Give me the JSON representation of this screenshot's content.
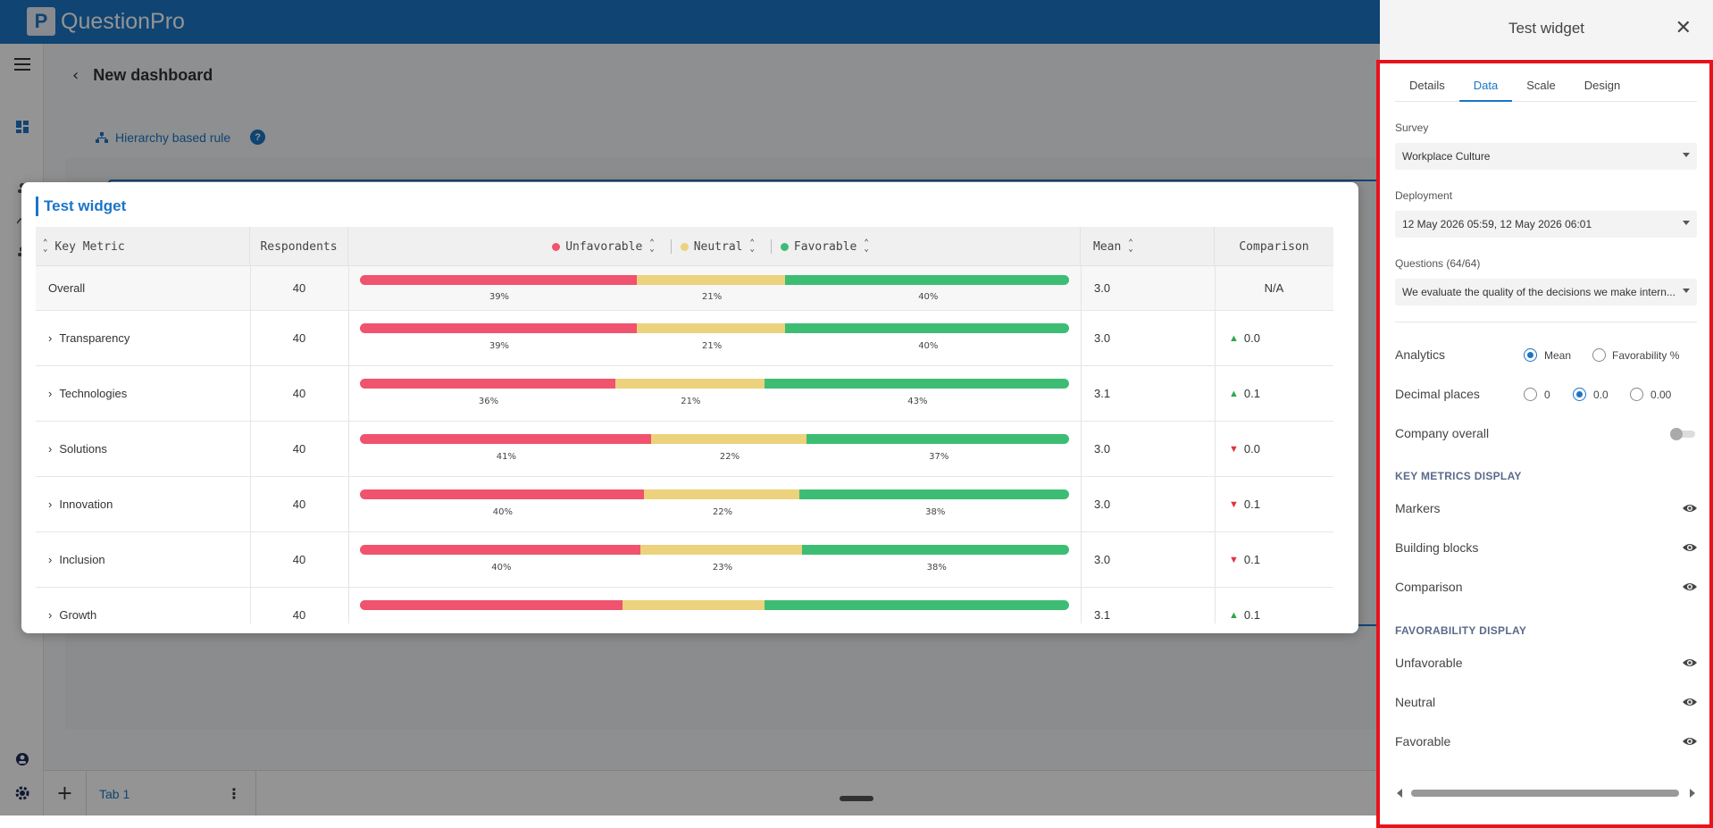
{
  "app": {
    "brand": "QuestionPro",
    "logo_letter": "P"
  },
  "page": {
    "title": "New dashboard",
    "hierarchy_link": "Hierarchy based rule",
    "help_glyph": "?"
  },
  "bottom": {
    "add_glyph": "+",
    "tab_label": "Tab 1",
    "tab_menu_glyph": "⋮"
  },
  "widget": {
    "title": "Test widget",
    "columns": {
      "key_metric": "Key Metric",
      "respondents": "Respondents",
      "unfavorable": "Unfavorable",
      "neutral": "Neutral",
      "favorable": "Favorable",
      "mean": "Mean",
      "comparison": "Comparison"
    },
    "rows": [
      {
        "name": "Overall",
        "expandable": false,
        "respondents": "40",
        "unfavorable": 39,
        "neutral": 21,
        "favorable": 40,
        "u_label": "39%",
        "n_label": "21%",
        "f_label": "40%",
        "mean": "3.0",
        "comparison": "N/A",
        "trend": "none"
      },
      {
        "name": "Transparency",
        "expandable": true,
        "respondents": "40",
        "unfavorable": 39,
        "neutral": 21,
        "favorable": 40,
        "u_label": "39%",
        "n_label": "21%",
        "f_label": "40%",
        "mean": "3.0",
        "comparison": "0.0",
        "trend": "up"
      },
      {
        "name": "Technologies",
        "expandable": true,
        "respondents": "40",
        "unfavorable": 36,
        "neutral": 21,
        "favorable": 43,
        "u_label": "36%",
        "n_label": "21%",
        "f_label": "43%",
        "mean": "3.1",
        "comparison": "0.1",
        "trend": "up"
      },
      {
        "name": "Solutions",
        "expandable": true,
        "respondents": "40",
        "unfavorable": 41,
        "neutral": 22,
        "favorable": 37,
        "u_label": "41%",
        "n_label": "22%",
        "f_label": "37%",
        "mean": "3.0",
        "comparison": "0.0",
        "trend": "down"
      },
      {
        "name": "Innovation",
        "expandable": true,
        "respondents": "40",
        "unfavorable": 40,
        "neutral": 22,
        "favorable": 38,
        "u_label": "40%",
        "n_label": "22%",
        "f_label": "38%",
        "mean": "3.0",
        "comparison": "0.1",
        "trend": "down"
      },
      {
        "name": "Inclusion",
        "expandable": true,
        "respondents": "40",
        "unfavorable": 40,
        "neutral": 23,
        "favorable": 38,
        "u_label": "40%",
        "n_label": "23%",
        "f_label": "38%",
        "mean": "3.0",
        "comparison": "0.1",
        "trend": "down"
      },
      {
        "name": "Growth",
        "expandable": true,
        "respondents": "40",
        "unfavorable": 37,
        "neutral": 20,
        "favorable": 43,
        "u_label": "",
        "n_label": "",
        "f_label": "",
        "mean": "3.1",
        "comparison": "0.1",
        "trend": "up"
      }
    ],
    "colors": {
      "unfavorable": "#f0536d",
      "neutral": "#ecd27c",
      "favorable": "#3dbd74",
      "accent": "#1b75c7"
    }
  },
  "panel": {
    "title": "Test widget",
    "close_glyph": "✕",
    "tabs": [
      "Details",
      "Data",
      "Scale",
      "Design"
    ],
    "active_tab": "Data",
    "survey": {
      "label": "Survey",
      "value": "Workplace Culture"
    },
    "deployment": {
      "label": "Deployment",
      "value": "12 May 2026 05:59, 12 May 2026 06:01"
    },
    "questions": {
      "label": "Questions (64/64)",
      "value": "We evaluate the quality of the decisions we make intern..."
    },
    "analytics": {
      "label": "Analytics",
      "options": [
        "Mean",
        "Favorability %"
      ],
      "selected": "Mean"
    },
    "decimal_places": {
      "label": "Decimal places",
      "options": [
        "0",
        "0.0",
        "0.00"
      ],
      "selected": "0.0"
    },
    "company_overall": {
      "label": "Company overall",
      "enabled": false
    },
    "key_metrics_display": {
      "heading": "KEY METRICS DISPLAY",
      "items": [
        "Markers",
        "Building blocks",
        "Comparison"
      ]
    },
    "favorability_display": {
      "heading": "FAVORABILITY DISPLAY",
      "items": [
        "Unfavorable",
        "Neutral",
        "Favorable"
      ]
    }
  }
}
